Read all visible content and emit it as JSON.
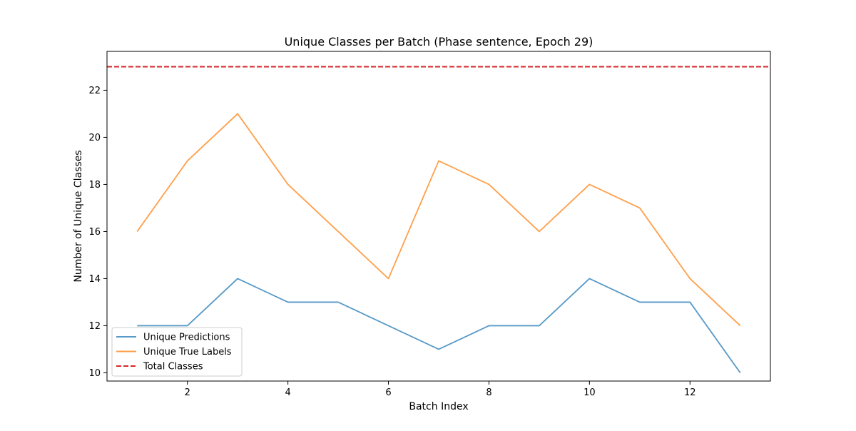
{
  "chart_data": {
    "type": "line",
    "title": "Unique Classes per Batch (Phase sentence, Epoch 29)",
    "xlabel": "Batch Index",
    "ylabel": "Number of Unique Classes",
    "x": [
      1,
      2,
      3,
      4,
      5,
      6,
      7,
      8,
      9,
      10,
      11,
      12,
      13
    ],
    "xlim": [
      0.4,
      13.6
    ],
    "ylim": [
      9.65,
      23.65
    ],
    "xticks": [
      2,
      4,
      6,
      8,
      10,
      12
    ],
    "yticks": [
      10,
      12,
      14,
      16,
      18,
      20,
      22
    ],
    "grid": false,
    "legend_position": "lower-left",
    "series": [
      {
        "name": "Unique Predictions",
        "color": "#1f77b4",
        "style": "solid",
        "values": [
          12,
          12,
          14,
          13,
          13,
          12,
          11,
          12,
          12,
          14,
          13,
          13,
          10
        ]
      },
      {
        "name": "Unique True Labels",
        "color": "#ff7f0e",
        "style": "solid",
        "values": [
          16,
          19,
          21,
          18,
          16,
          14,
          19,
          18,
          16,
          18,
          17,
          14,
          12
        ]
      }
    ],
    "reference_lines": [
      {
        "name": "Total Classes",
        "color": "#d62728",
        "style": "dashed",
        "y": 23
      }
    ]
  }
}
